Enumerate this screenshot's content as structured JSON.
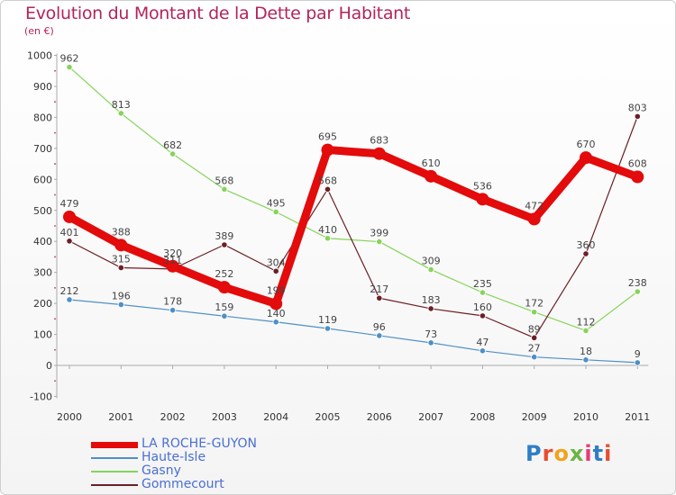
{
  "title": "Evolution du Montant de la Dette par Habitant",
  "unit": "(en €)",
  "logo": {
    "text": "Proxiti",
    "colors": [
      "#2f7ec5",
      "#e84c2e",
      "#f2a21d",
      "#6ab545",
      "#e83a7b",
      "#2f7ec5",
      "#e84c2e"
    ]
  },
  "colors": {
    "title": "#b3245b",
    "axis": "#aaaaaa",
    "legend_text": "#4a6fd0"
  },
  "chart_data": {
    "type": "line",
    "title": "Evolution du Montant de la Dette par Habitant",
    "ylabel": "(en €)",
    "xlabel": "",
    "x": [
      "2000",
      "2001",
      "2002",
      "2003",
      "2004",
      "2005",
      "2006",
      "2007",
      "2008",
      "2009",
      "2010",
      "2011"
    ],
    "ylim": [
      -100,
      1000
    ],
    "yticks": [
      -100,
      0,
      100,
      200,
      300,
      400,
      500,
      600,
      700,
      800,
      900,
      1000
    ],
    "legend_position": "bottom-left",
    "grid": false,
    "series": [
      {
        "name": "LA ROCHE-GUYON",
        "color": "#e30b0b",
        "values": [
          479,
          388,
          320,
          252,
          199,
          695,
          683,
          610,
          536,
          472,
          670,
          608
        ]
      },
      {
        "name": "Haute-Isle",
        "color": "#4f8fc6",
        "values": [
          212,
          196,
          178,
          159,
          140,
          119,
          96,
          73,
          47,
          27,
          18,
          9
        ]
      },
      {
        "name": "Gasny",
        "color": "#86d45c",
        "values": [
          962,
          813,
          682,
          568,
          495,
          410,
          399,
          309,
          235,
          172,
          112,
          238
        ]
      },
      {
        "name": "Gommecourt",
        "color": "#6b1f24",
        "values": [
          401,
          315,
          311,
          389,
          304,
          568,
          217,
          183,
          160,
          89,
          360,
          803
        ]
      }
    ]
  }
}
